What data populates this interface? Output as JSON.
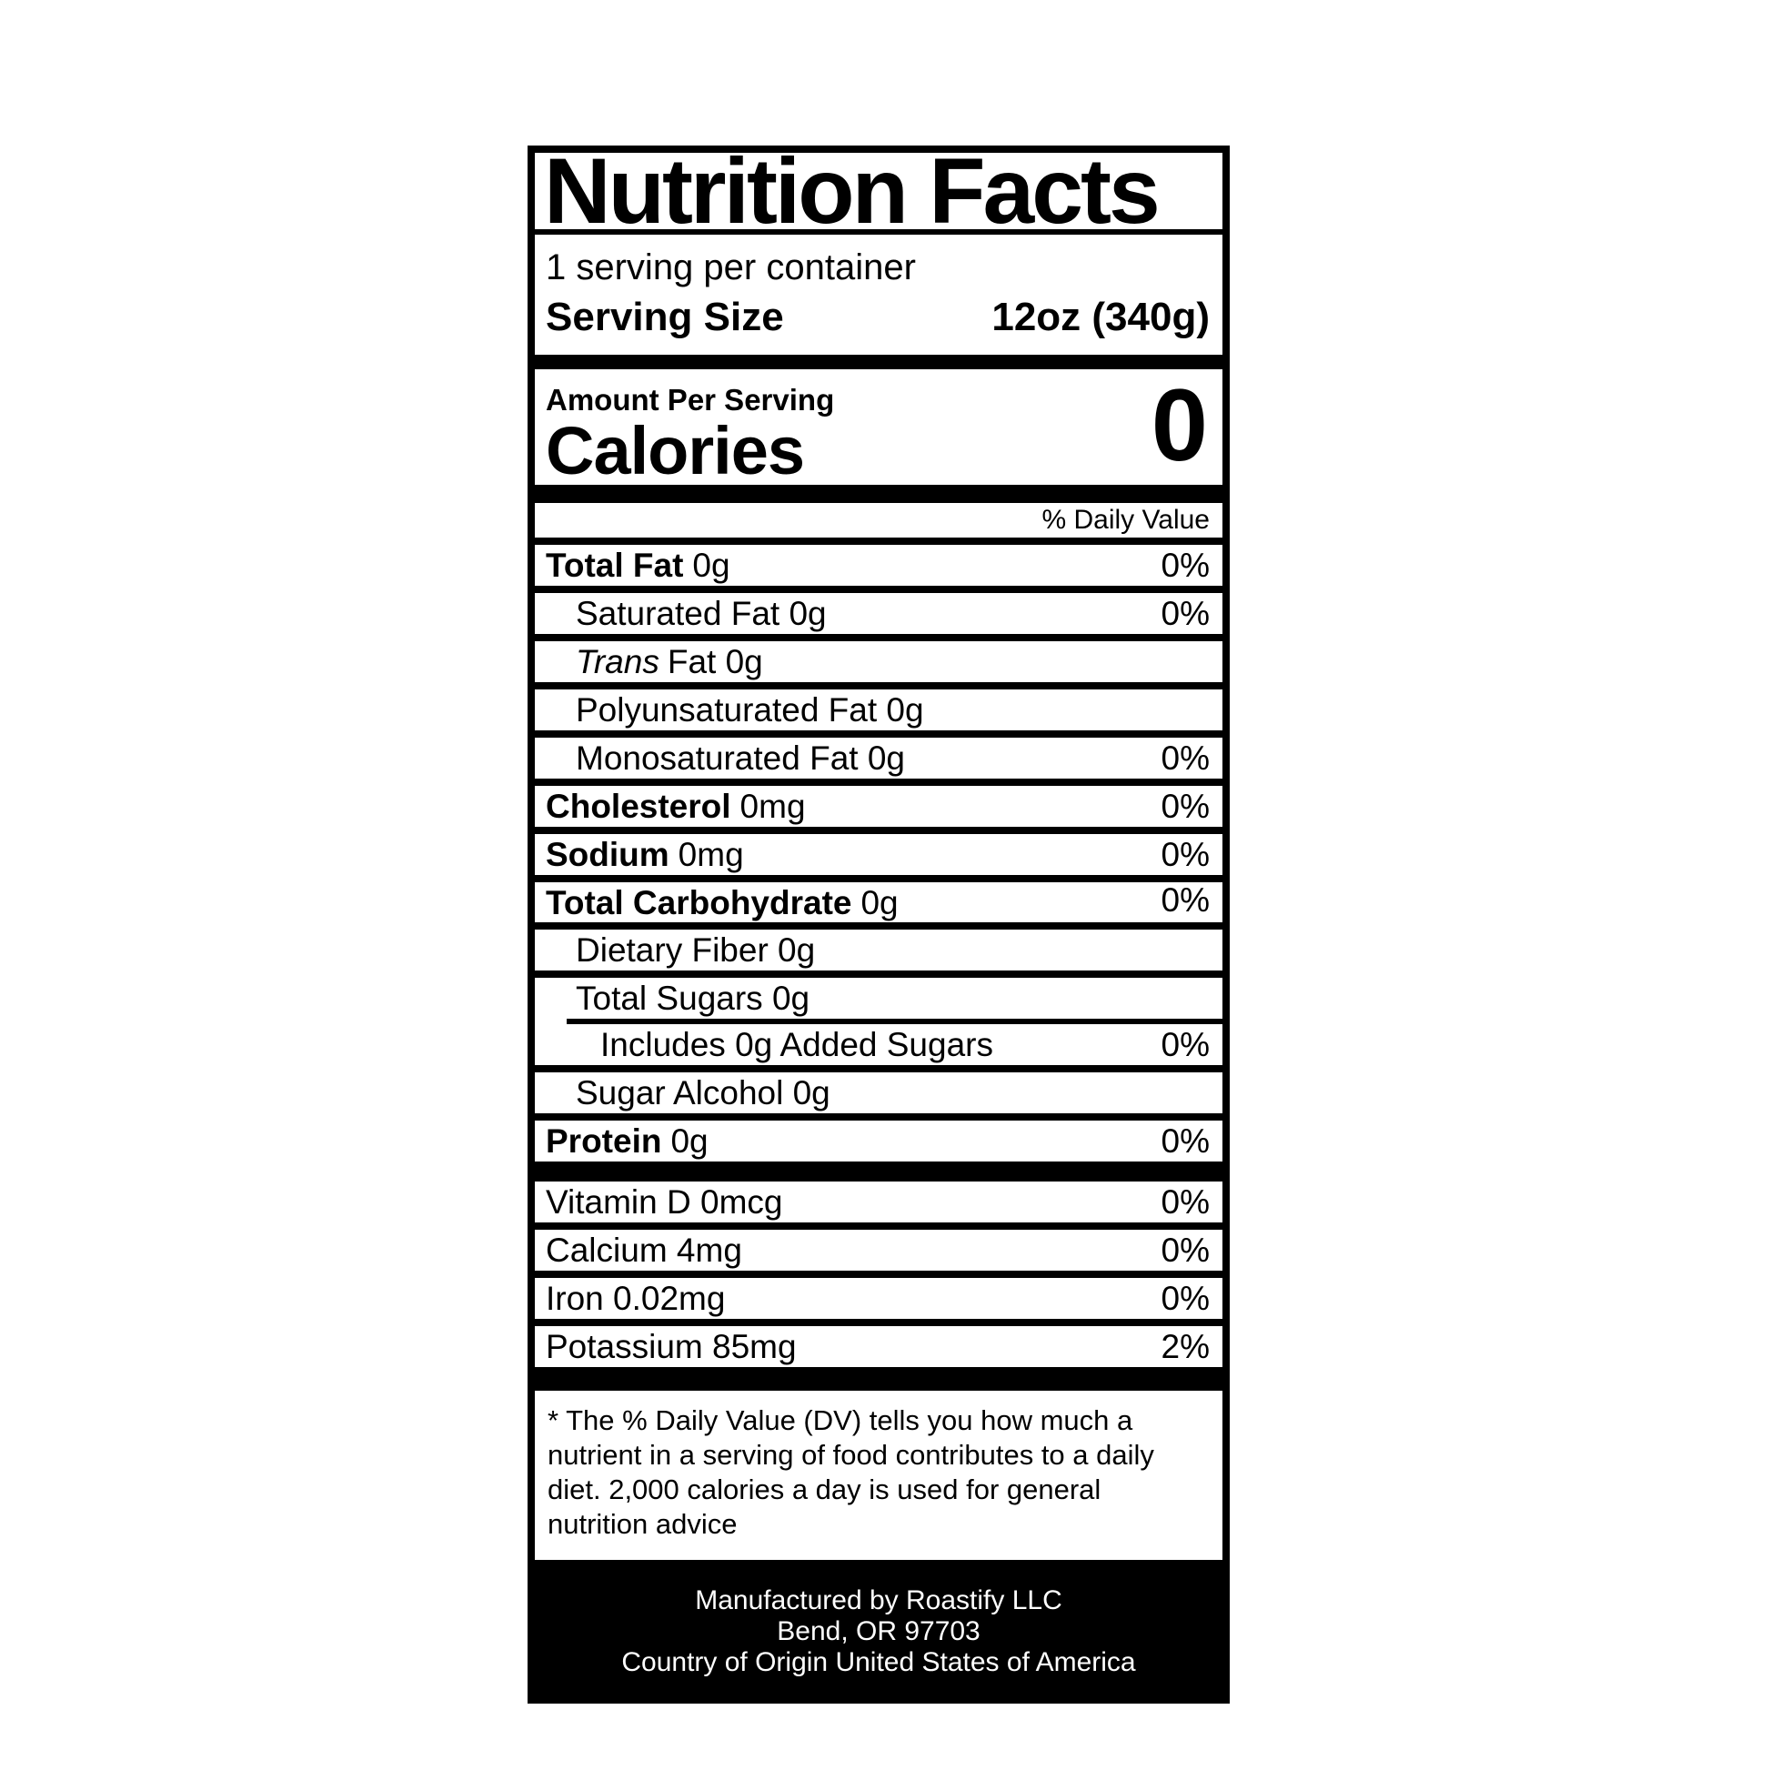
{
  "colors": {
    "ink": "#000000",
    "paper": "#ffffff",
    "footer_bg": "#000000",
    "footer_text": "#ffffff"
  },
  "label": {
    "title": "Nutrition Facts",
    "servings_per_container": "1 serving per container",
    "serving_size_label": "Serving Size",
    "serving_size_value": "12oz (340g)",
    "amount_per_serving": "Amount Per Serving",
    "calories_label": "Calories",
    "calories_value": "0",
    "daily_value_header": "% Daily Value",
    "nutrients": [
      {
        "bold": "Total Fat",
        "text": "0g",
        "pct": "0%"
      },
      {
        "text": "Saturated Fat 0g",
        "pct": "0%"
      },
      {
        "italic": "Trans",
        "text": "Fat 0g",
        "pct": ""
      },
      {
        "text": "Polyunsaturated Fat 0g",
        "pct": ""
      },
      {
        "text": "Monosaturated Fat 0g",
        "pct": "0%"
      },
      {
        "bold": "Cholesterol",
        "text": "0mg",
        "pct": "0%"
      },
      {
        "bold": "Sodium",
        "text": "0mg",
        "pct": "0%"
      },
      {
        "bold": "Total Carbohydrate",
        "text": "0g",
        "pct": "0%"
      },
      {
        "text": "Dietary Fiber 0g",
        "pct": ""
      },
      {
        "text": "Total Sugars 0g",
        "pct": ""
      },
      {
        "text": "Includes 0g Added Sugars",
        "pct": "0%"
      },
      {
        "text": "Sugar Alcohol 0g",
        "pct": ""
      },
      {
        "bold": "Protein",
        "text": "0g",
        "pct": "0%"
      }
    ],
    "vitamins": [
      {
        "text": "Vitamin D 0mcg",
        "pct": "0%"
      },
      {
        "text": "Calcium 4mg",
        "pct": "0%"
      },
      {
        "text": "Iron 0.02mg",
        "pct": "0%"
      },
      {
        "text": "Potassium 85mg",
        "pct": "2%"
      }
    ],
    "footnote": "* The % Daily Value (DV) tells you how much a nutrient in a serving of food contributes to a daily diet. 2,000 calories a day is used for general nutrition advice",
    "footer_lines": [
      "Manufactured by Roastify LLC",
      "Bend, OR 97703",
      "Country of Origin United States of America"
    ]
  }
}
